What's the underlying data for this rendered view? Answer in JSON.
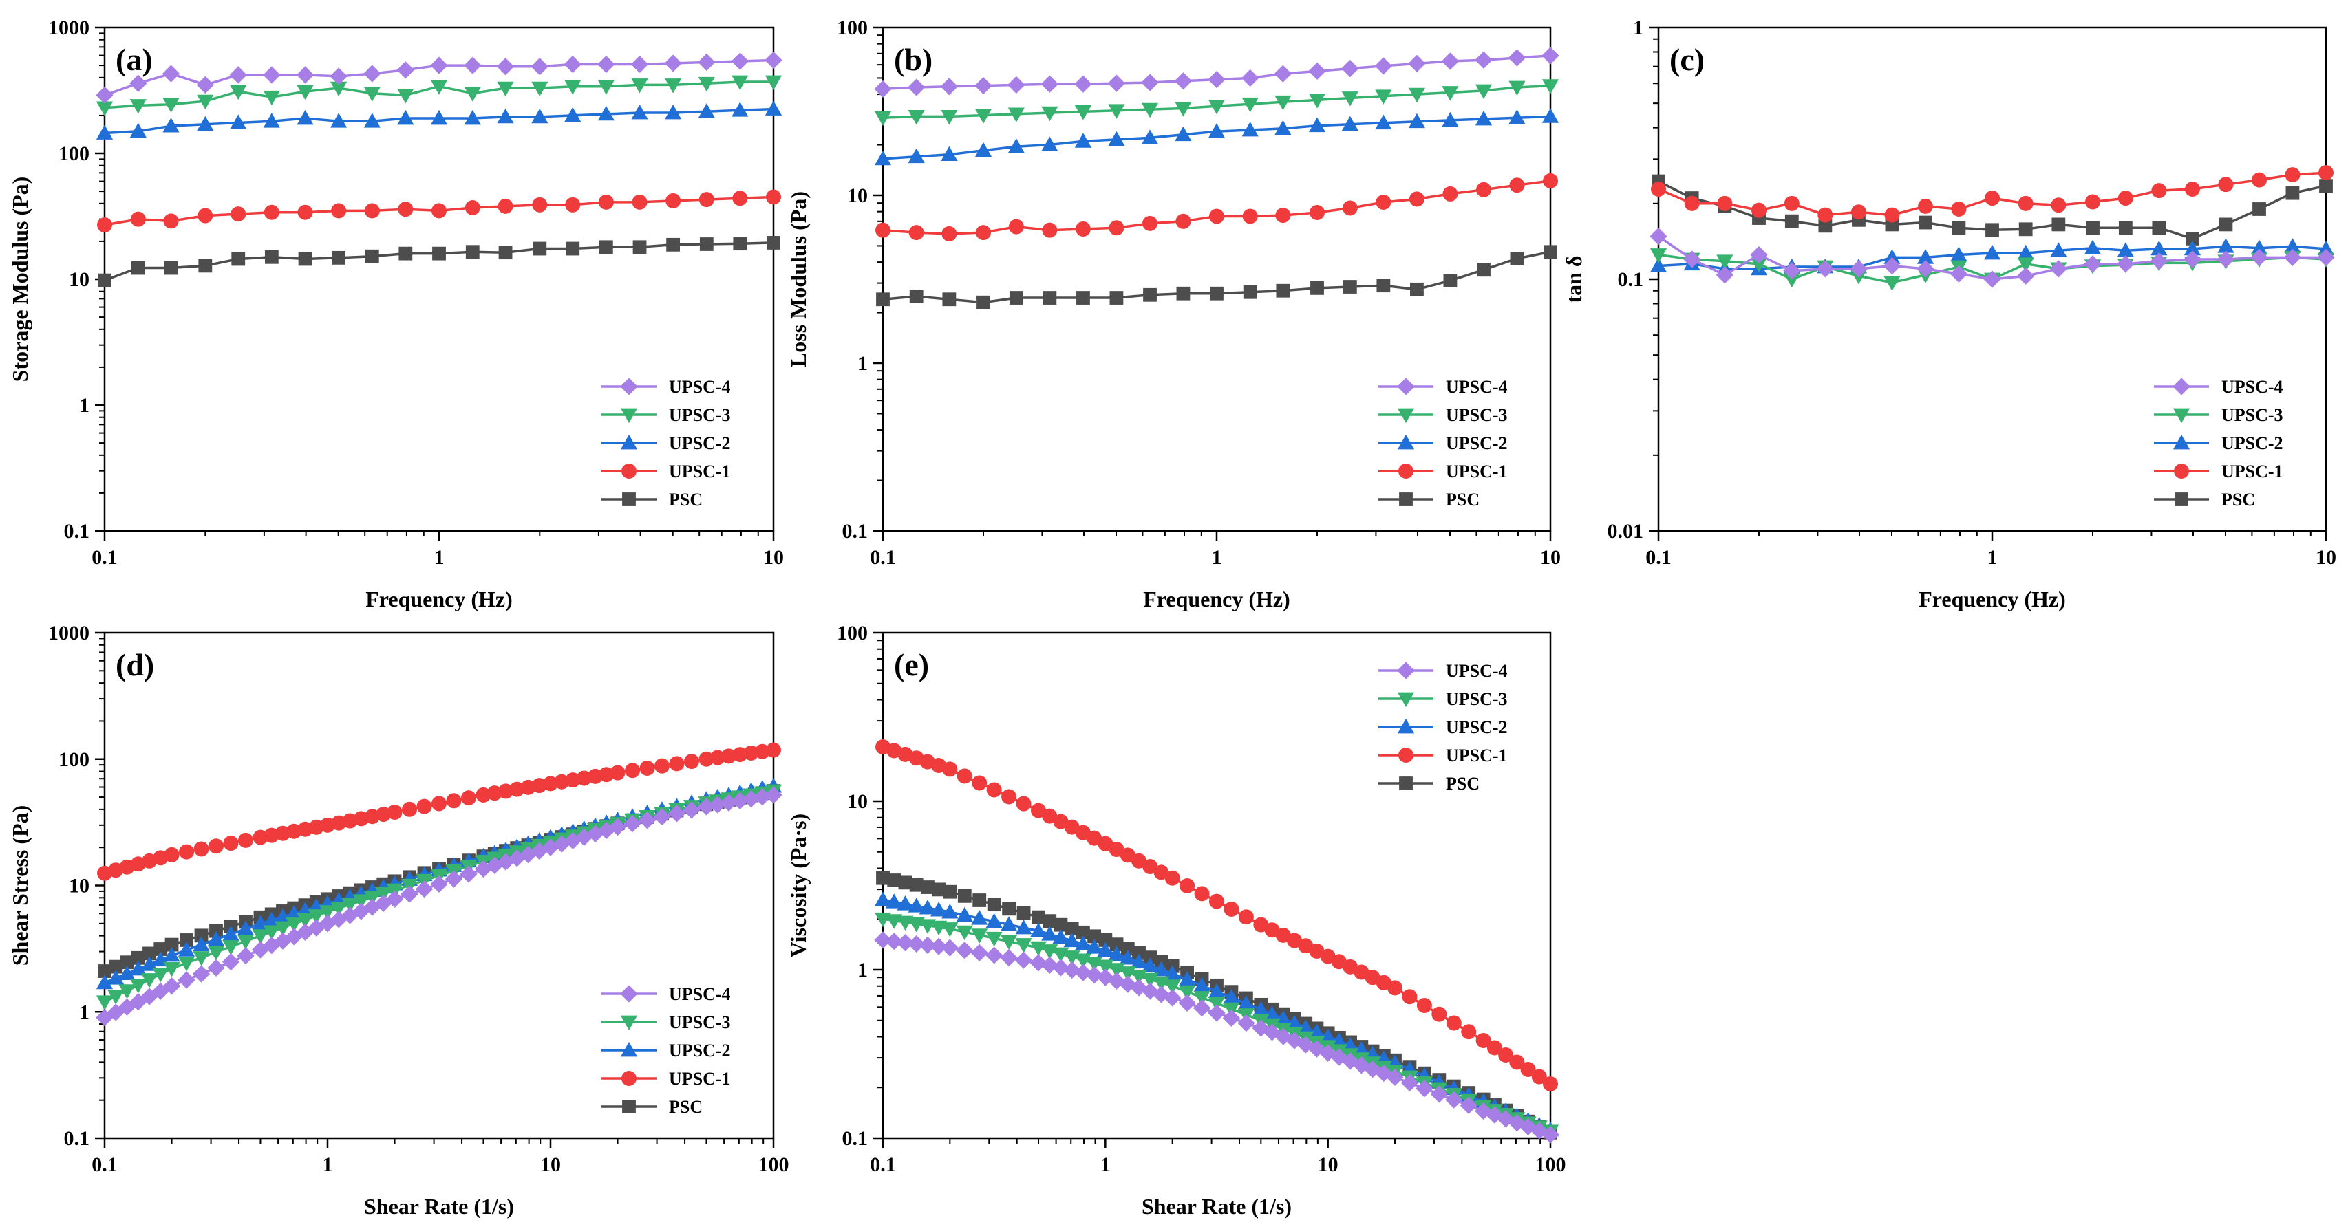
{
  "chart_data": [
    {
      "panel": "(a)",
      "type": "line",
      "xscale": "log",
      "yscale": "log",
      "xlabel": "Frequency (Hz)",
      "ylabel": "Storage Modulus (Pa)",
      "xlim": [
        0.1,
        10
      ],
      "ylim": [
        0.1,
        1000
      ],
      "x_ticks": [
        0.1,
        1,
        10
      ],
      "x_tick_labels": [
        "0.1",
        "1",
        "10"
      ],
      "y_ticks": [
        0.1,
        1,
        10,
        100,
        1000
      ],
      "y_tick_labels": [
        "0.1",
        "1",
        "10",
        "100",
        "1000"
      ],
      "legend_position": "bottom-right",
      "x": [
        0.1,
        0.126,
        0.158,
        0.2,
        0.251,
        0.316,
        0.398,
        0.501,
        0.631,
        0.794,
        1,
        1.26,
        1.58,
        2,
        2.51,
        3.16,
        3.98,
        5.01,
        6.31,
        7.94,
        10
      ],
      "series": [
        {
          "name": "UPSC-4",
          "values": [
            290,
            360,
            430,
            350,
            420,
            420,
            420,
            410,
            430,
            460,
            500,
            500,
            490,
            490,
            510,
            510,
            510,
            520,
            530,
            540,
            550
          ]
        },
        {
          "name": "UPSC-3",
          "values": [
            230,
            240,
            245,
            260,
            310,
            280,
            310,
            330,
            300,
            290,
            340,
            300,
            330,
            330,
            340,
            340,
            350,
            350,
            360,
            370,
            370
          ]
        },
        {
          "name": "UPSC-2",
          "values": [
            145,
            150,
            165,
            170,
            175,
            180,
            190,
            180,
            180,
            190,
            190,
            190,
            195,
            195,
            200,
            205,
            210,
            210,
            215,
            220,
            225
          ]
        },
        {
          "name": "UPSC-1",
          "values": [
            27,
            30,
            29,
            32,
            33,
            34,
            34,
            35,
            35,
            36,
            35,
            37,
            38,
            39,
            39,
            41,
            41,
            42,
            43,
            44,
            45
          ]
        },
        {
          "name": "PSC",
          "values": [
            9.8,
            12.3,
            12.3,
            12.8,
            14.5,
            15,
            14.5,
            14.8,
            15.2,
            16,
            16,
            16.5,
            16.3,
            17.5,
            17.5,
            18,
            18,
            18.8,
            19,
            19.2,
            19.5
          ]
        }
      ]
    },
    {
      "panel": "(b)",
      "type": "line",
      "xscale": "log",
      "yscale": "log",
      "xlabel": "Frequency (Hz)",
      "ylabel": "Loss Modulus (Pa)",
      "xlim": [
        0.1,
        10
      ],
      "ylim": [
        0.1,
        100
      ],
      "x_ticks": [
        0.1,
        1,
        10
      ],
      "x_tick_labels": [
        "0.1",
        "1",
        "10"
      ],
      "y_ticks": [
        0.1,
        1,
        10,
        100
      ],
      "y_tick_labels": [
        "0.1",
        "1",
        "10",
        "100"
      ],
      "legend_position": "bottom-right",
      "x": [
        0.1,
        0.126,
        0.158,
        0.2,
        0.251,
        0.316,
        0.398,
        0.501,
        0.631,
        0.794,
        1,
        1.26,
        1.58,
        2,
        2.51,
        3.16,
        3.98,
        5.01,
        6.31,
        7.94,
        10
      ],
      "series": [
        {
          "name": "UPSC-4",
          "values": [
            43,
            44,
            44.5,
            45,
            45.5,
            46,
            46,
            46.5,
            47,
            48,
            49,
            50,
            53,
            55,
            57,
            59,
            61,
            63,
            64,
            66,
            68
          ]
        },
        {
          "name": "UPSC-3",
          "values": [
            29,
            29.5,
            29.5,
            30,
            30.5,
            31,
            31.5,
            32,
            32.5,
            33,
            34,
            35,
            36,
            37,
            38,
            39,
            40,
            41,
            42,
            44,
            45
          ]
        },
        {
          "name": "UPSC-2",
          "values": [
            16.5,
            17,
            17.5,
            18.5,
            19.5,
            20,
            21,
            21.5,
            22,
            23,
            24,
            24.5,
            25,
            26,
            26.5,
            27,
            27.5,
            28,
            28.5,
            29,
            29.5
          ]
        },
        {
          "name": "UPSC-1",
          "values": [
            6.2,
            6.0,
            5.9,
            6.0,
            6.5,
            6.2,
            6.3,
            6.4,
            6.8,
            7.0,
            7.5,
            7.5,
            7.6,
            7.9,
            8.4,
            9.1,
            9.5,
            10.2,
            10.8,
            11.5,
            12.2
          ]
        },
        {
          "name": "PSC",
          "values": [
            2.4,
            2.5,
            2.4,
            2.3,
            2.45,
            2.45,
            2.45,
            2.45,
            2.55,
            2.6,
            2.6,
            2.65,
            2.7,
            2.8,
            2.85,
            2.9,
            2.75,
            3.1,
            3.6,
            4.2,
            4.6
          ]
        }
      ]
    },
    {
      "panel": "(c)",
      "type": "line",
      "xscale": "log",
      "yscale": "log",
      "xlabel": "Frequency (Hz)",
      "ylabel": "tan δ",
      "xlim": [
        0.1,
        10
      ],
      "ylim": [
        0.01,
        1
      ],
      "x_ticks": [
        0.1,
        1,
        10
      ],
      "x_tick_labels": [
        "0.1",
        "1",
        "10"
      ],
      "y_ticks": [
        0.01,
        0.1,
        1
      ],
      "y_tick_labels": [
        "0.01",
        "0.1",
        "1"
      ],
      "legend_position": "bottom-right",
      "x": [
        0.1,
        0.126,
        0.158,
        0.2,
        0.251,
        0.316,
        0.398,
        0.501,
        0.631,
        0.794,
        1,
        1.26,
        1.58,
        2,
        2.51,
        3.16,
        3.98,
        5.01,
        6.31,
        7.94,
        10
      ],
      "series": [
        {
          "name": "UPSC-4",
          "values": [
            0.148,
            0.12,
            0.104,
            0.125,
            0.108,
            0.11,
            0.11,
            0.113,
            0.11,
            0.105,
            0.1,
            0.103,
            0.11,
            0.115,
            0.115,
            0.118,
            0.12,
            0.12,
            0.122,
            0.122,
            0.122
          ]
        },
        {
          "name": "UPSC-3",
          "values": [
            0.125,
            0.12,
            0.118,
            0.115,
            0.1,
            0.112,
            0.103,
            0.097,
            0.104,
            0.112,
            0.1,
            0.115,
            0.11,
            0.113,
            0.114,
            0.116,
            0.116,
            0.118,
            0.12,
            0.122,
            0.12
          ]
        },
        {
          "name": "UPSC-2",
          "values": [
            0.113,
            0.115,
            0.11,
            0.11,
            0.112,
            0.112,
            0.112,
            0.122,
            0.122,
            0.125,
            0.127,
            0.127,
            0.13,
            0.133,
            0.13,
            0.132,
            0.132,
            0.135,
            0.133,
            0.135,
            0.132
          ]
        },
        {
          "name": "UPSC-1",
          "values": [
            0.228,
            0.2,
            0.2,
            0.188,
            0.2,
            0.18,
            0.185,
            0.18,
            0.195,
            0.19,
            0.21,
            0.2,
            0.197,
            0.203,
            0.21,
            0.225,
            0.228,
            0.238,
            0.248,
            0.26,
            0.265
          ]
        },
        {
          "name": "PSC",
          "values": [
            0.245,
            0.21,
            0.195,
            0.175,
            0.17,
            0.163,
            0.172,
            0.165,
            0.168,
            0.16,
            0.157,
            0.158,
            0.165,
            0.16,
            0.16,
            0.16,
            0.145,
            0.165,
            0.19,
            0.22,
            0.235
          ]
        }
      ]
    },
    {
      "panel": "(d)",
      "type": "line",
      "xscale": "log",
      "yscale": "log",
      "xlabel": "Shear Rate (1/s)",
      "ylabel": "Shear Stress (Pa)",
      "xlim": [
        0.1,
        100
      ],
      "ylim": [
        0.1,
        1000
      ],
      "x_ticks": [
        0.1,
        1,
        10,
        100
      ],
      "x_tick_labels": [
        "0.1",
        "1",
        "10",
        "100"
      ],
      "y_ticks": [
        0.1,
        1,
        10,
        100,
        1000
      ],
      "y_tick_labels": [
        "0.1",
        "1",
        "10",
        "100",
        "1000"
      ],
      "legend_position": "bottom-right",
      "x": [
        0.1,
        0.2,
        0.5,
        1,
        2,
        5,
        10,
        20,
        50,
        100
      ],
      "series": [
        {
          "name": "UPSC-4",
          "values": [
            0.9,
            1.6,
            3.1,
            5.0,
            7.8,
            13.5,
            20,
            29,
            42,
            52
          ]
        },
        {
          "name": "UPSC-3",
          "values": [
            1.2,
            2.2,
            4.0,
            6.2,
            9.2,
            15.5,
            22,
            31,
            45,
            56
          ]
        },
        {
          "name": "UPSC-2",
          "values": [
            1.7,
            2.8,
            5.0,
            7.2,
            10.3,
            17,
            24,
            33,
            48,
            61
          ]
        },
        {
          "name": "UPSC-1",
          "values": [
            12.5,
            17.5,
            24,
            30,
            38,
            52,
            64,
            78,
            100,
            118
          ]
        },
        {
          "name": "PSC",
          "values": [
            2.1,
            3.4,
            5.6,
            7.8,
            10.8,
            17,
            23,
            31,
            44,
            56
          ]
        }
      ]
    },
    {
      "panel": "(e)",
      "type": "line",
      "xscale": "log",
      "yscale": "log",
      "xlabel": "Shear Rate (1/s)",
      "ylabel": "Viscosity (Pa·s)",
      "xlim": [
        0.1,
        100
      ],
      "ylim": [
        0.1,
        100
      ],
      "x_ticks": [
        0.1,
        1,
        10,
        100
      ],
      "x_tick_labels": [
        "0.1",
        "1",
        "10",
        "100"
      ],
      "y_ticks": [
        0.1,
        1,
        10,
        100
      ],
      "y_tick_labels": [
        "0.1",
        "1",
        "10",
        "100"
      ],
      "legend_position": "top-right",
      "x": [
        0.1,
        0.2,
        0.5,
        1,
        2,
        5,
        10,
        20,
        50,
        100
      ],
      "series": [
        {
          "name": "UPSC-4",
          "values": [
            1.5,
            1.35,
            1.1,
            0.9,
            0.68,
            0.45,
            0.32,
            0.23,
            0.145,
            0.105
          ]
        },
        {
          "name": "UPSC-3",
          "values": [
            2.0,
            1.75,
            1.35,
            1.05,
            0.8,
            0.5,
            0.35,
            0.25,
            0.155,
            0.11
          ]
        },
        {
          "name": "UPSC-2",
          "values": [
            2.6,
            2.2,
            1.7,
            1.3,
            0.95,
            0.58,
            0.4,
            0.28,
            0.165,
            0.112
          ]
        },
        {
          "name": "UPSC-1",
          "values": [
            21,
            15.5,
            8.8,
            5.6,
            3.5,
            1.85,
            1.2,
            0.78,
            0.38,
            0.21
          ]
        },
        {
          "name": "PSC",
          "values": [
            3.5,
            2.9,
            2.05,
            1.5,
            1.05,
            0.62,
            0.42,
            0.29,
            0.17,
            0.108
          ]
        }
      ]
    }
  ],
  "series_styles": {
    "UPSC-4": {
      "color": "#a77de6",
      "marker": "diamond"
    },
    "UPSC-3": {
      "color": "#36b26e",
      "marker": "triangle-down"
    },
    "UPSC-2": {
      "color": "#1f6fd6",
      "marker": "triangle-up"
    },
    "UPSC-1": {
      "color": "#ef3b3b",
      "marker": "circle"
    },
    "PSC": {
      "color": "#4d4d4d",
      "marker": "square"
    }
  },
  "legend_order": [
    "UPSC-4",
    "UPSC-3",
    "UPSC-2",
    "UPSC-1",
    "PSC"
  ]
}
